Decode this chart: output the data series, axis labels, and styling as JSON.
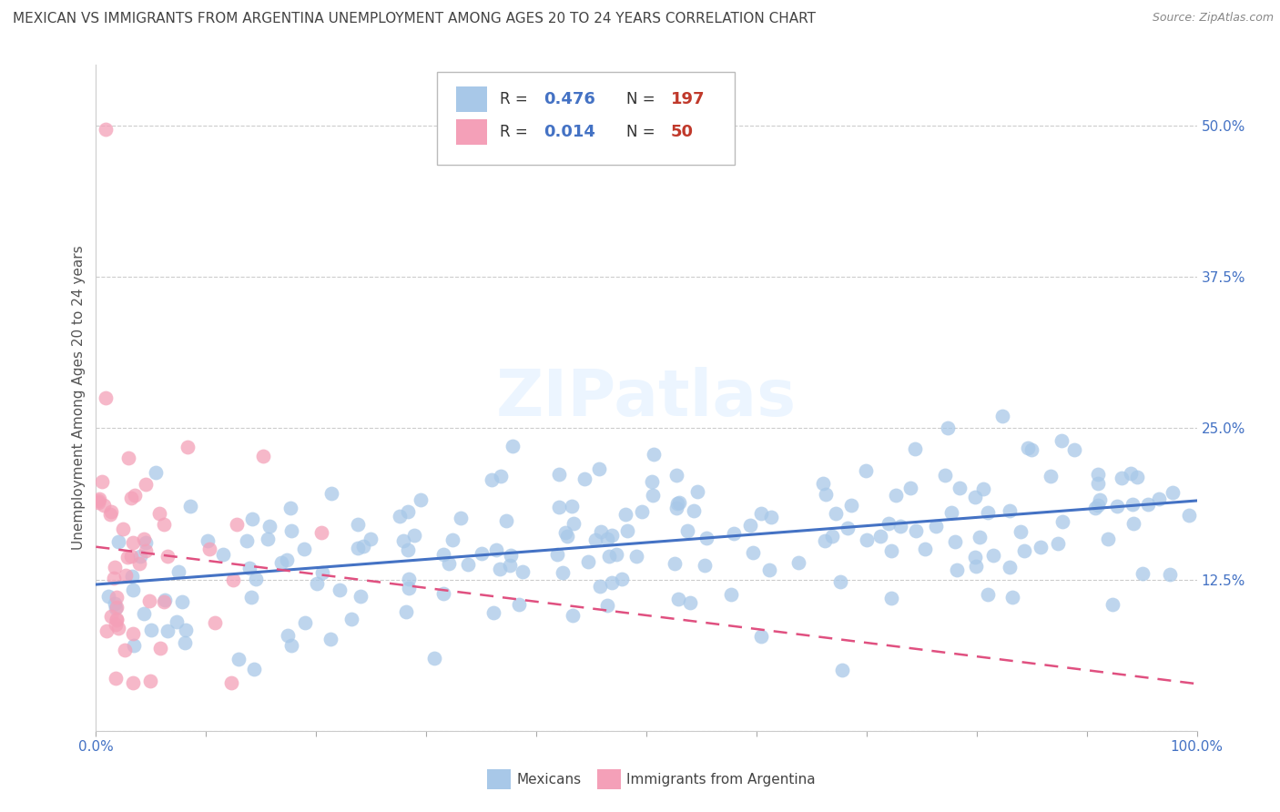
{
  "title": "MEXICAN VS IMMIGRANTS FROM ARGENTINA UNEMPLOYMENT AMONG AGES 20 TO 24 YEARS CORRELATION CHART",
  "source": "Source: ZipAtlas.com",
  "ylabel": "Unemployment Among Ages 20 to 24 years",
  "xlim": [
    0.0,
    1.0
  ],
  "ylim": [
    0.0,
    0.55
  ],
  "x_tick_positions": [
    0.0,
    0.1,
    0.2,
    0.3,
    0.4,
    0.5,
    0.6,
    0.7,
    0.8,
    0.9,
    1.0
  ],
  "x_tick_labels": [
    "0.0%",
    "",
    "",
    "",
    "",
    "",
    "",
    "",
    "",
    "",
    "100.0%"
  ],
  "y_ticks": [
    0.0,
    0.125,
    0.25,
    0.375,
    0.5
  ],
  "y_tick_labels_right": [
    "",
    "12.5%",
    "25.0%",
    "37.5%",
    "50.0%"
  ],
  "blue_R": 0.476,
  "blue_N": 197,
  "pink_R": 0.014,
  "pink_N": 50,
  "blue_color": "#a8c8e8",
  "pink_color": "#f4a0b8",
  "blue_line_color": "#4472c4",
  "pink_line_color": "#e05080",
  "pink_line_style": "dashed",
  "grid_color": "#cccccc",
  "background_color": "#ffffff",
  "watermark": "ZIPatlas",
  "title_fontsize": 11,
  "source_fontsize": 9,
  "legend_R_color": "#4472c4",
  "legend_N_color": "#c0392b",
  "dot_size": 130,
  "dot_alpha": 0.75
}
